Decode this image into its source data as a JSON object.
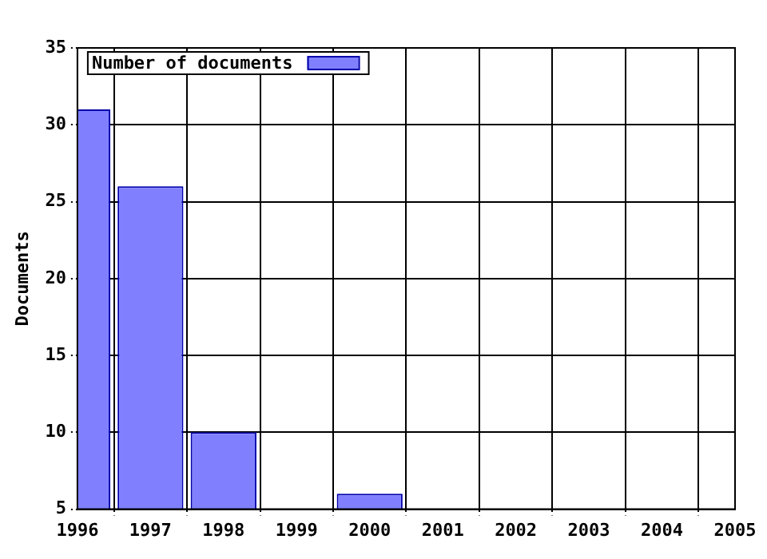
{
  "chart_data": {
    "type": "bar",
    "ylabel": "Documents",
    "x": [
      1996,
      1997,
      1998,
      2000
    ],
    "series": [
      {
        "name": "Number of documents",
        "color": "#8080ff",
        "values": [
          31,
          26,
          10,
          6
        ]
      }
    ],
    "xlim": [
      1996,
      2005
    ],
    "xticks": [
      1996,
      1997,
      1998,
      1999,
      2000,
      2001,
      2002,
      2003,
      2004,
      2005
    ],
    "ylim": [
      5,
      35
    ],
    "yticks": [
      5,
      10,
      15,
      20,
      25,
      30,
      35
    ],
    "grid": true,
    "legend": "top left"
  }
}
